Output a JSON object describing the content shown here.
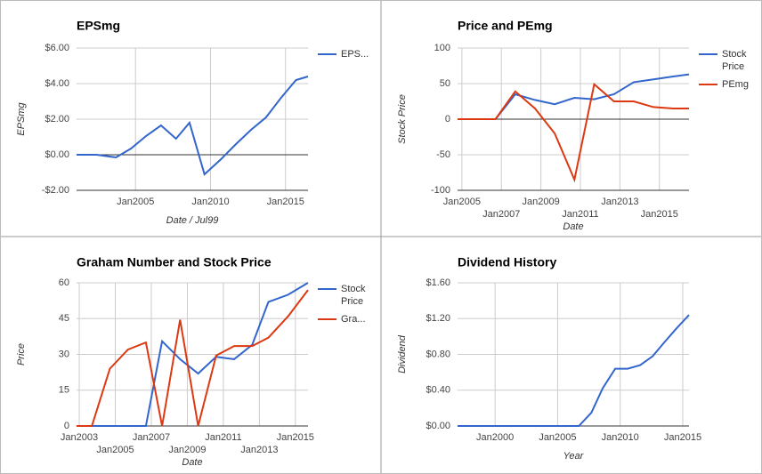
{
  "chart_data": [
    {
      "type": "line",
      "title": "EPSmg",
      "x_label": "Date / Jul99",
      "y_label": "EPSmg",
      "x": [
        2001.07,
        2002.4,
        2003.7,
        2004.7,
        2005.7,
        2006.7,
        2007.7,
        2008.6,
        2009.6,
        2010.7,
        2011.7,
        2012.7,
        2013.7,
        2014.7,
        2015.7,
        2016.5
      ],
      "series": [
        {
          "name": "EPS...",
          "color": "#3366cc",
          "values": [
            0,
            0,
            -0.15,
            0.35,
            1.05,
            1.65,
            0.9,
            1.8,
            -1.1,
            -0.25,
            0.6,
            1.4,
            2.1,
            3.2,
            4.2,
            4.4
          ]
        }
      ],
      "xlim": [
        2001.07,
        2016.5
      ],
      "ylim": [
        -2,
        6
      ],
      "xticks": [
        {
          "value": 2005,
          "label": "Jan2005"
        },
        {
          "value": 2010,
          "label": "Jan2010"
        },
        {
          "value": 2015,
          "label": "Jan2015"
        }
      ],
      "yticks": [
        {
          "value": -2,
          "label": "-$2.00"
        },
        {
          "value": 0,
          "label": "$0.00"
        },
        {
          "value": 2,
          "label": "$2.00"
        },
        {
          "value": 4,
          "label": "$4.00"
        },
        {
          "value": 6,
          "label": "$6.00"
        }
      ],
      "grid": true,
      "legend": "right"
    },
    {
      "type": "line",
      "title": "Price and PEmg",
      "x_label": "Date",
      "y_label": "Stock Price",
      "x": [
        2004.78,
        2005.7,
        2006.7,
        2007.7,
        2008.7,
        2009.7,
        2010.7,
        2011.7,
        2012.7,
        2013.7,
        2014.7,
        2015.7,
        2016.5
      ],
      "series": [
        {
          "name": "Stock Price",
          "color": "#3366cc",
          "values": [
            0,
            0,
            0,
            35,
            27,
            21,
            30,
            28,
            35,
            52,
            56,
            60,
            63
          ]
        },
        {
          "name": "PEmg",
          "color": "#dc3912",
          "values": [
            0,
            0,
            0,
            39,
            15,
            -20,
            -85,
            49,
            25,
            25,
            17,
            15,
            15
          ]
        }
      ],
      "xlim": [
        2004.78,
        2016.5
      ],
      "ylim": [
        -100,
        100
      ],
      "xticks": [
        {
          "value": 2005,
          "label": "Jan2005"
        },
        {
          "value": 2007,
          "label": "Jan2007"
        },
        {
          "value": 2009,
          "label": "Jan2009"
        },
        {
          "value": 2011,
          "label": "Jan2011"
        },
        {
          "value": 2013,
          "label": "Jan2013"
        },
        {
          "value": 2015,
          "label": "Jan2015"
        }
      ],
      "yticks": [
        -100,
        -50,
        0,
        50,
        100
      ],
      "grid": true,
      "legend": "right"
    },
    {
      "type": "line",
      "title": "Graham Number and Stock Price",
      "x_label": "Date",
      "y_label": "Price",
      "x": [
        2002.85,
        2003.7,
        2004.7,
        2005.7,
        2006.7,
        2007.6,
        2008.6,
        2009.6,
        2010.6,
        2011.6,
        2012.6,
        2013.5,
        2014.6,
        2015.7
      ],
      "series": [
        {
          "name": "Stock Price",
          "color": "#3366cc",
          "values": [
            0,
            0,
            0,
            0,
            0,
            35.5,
            28,
            22,
            29,
            28,
            34,
            52,
            55,
            60
          ]
        },
        {
          "name": "Gra...",
          "color": "#dc3912",
          "values": [
            0,
            0,
            24,
            32,
            35,
            0,
            44.5,
            0,
            29.5,
            33.5,
            33.5,
            37,
            46,
            57
          ]
        }
      ],
      "xlim": [
        2002.85,
        2015.7
      ],
      "ylim": [
        0,
        60
      ],
      "xticks": [
        {
          "value": 2003,
          "label": "Jan2003"
        },
        {
          "value": 2005,
          "label": "Jan2005"
        },
        {
          "value": 2007,
          "label": "Jan2007"
        },
        {
          "value": 2009,
          "label": "Jan2009"
        },
        {
          "value": 2011,
          "label": "Jan2011"
        },
        {
          "value": 2013,
          "label": "Jan2013"
        },
        {
          "value": 2015,
          "label": "Jan2015"
        }
      ],
      "yticks": [
        0,
        15,
        30,
        45,
        60
      ],
      "grid": true,
      "legend": "right"
    },
    {
      "type": "line",
      "title": "Dividend History",
      "x_label": "Year",
      "y_label": "Dividend",
      "x": [
        1997,
        2006.7,
        2007.7,
        2008.6,
        2009.6,
        2010.6,
        2011.6,
        2012.6,
        2013.5,
        2014.5,
        2015.5
      ],
      "series": [
        {
          "color": "#3366cc",
          "values": [
            0,
            0,
            0.15,
            0.42,
            0.64,
            0.64,
            0.68,
            0.78,
            0.93,
            1.09,
            1.24
          ]
        }
      ],
      "xlim": [
        1997,
        2015.5
      ],
      "ylim": [
        0,
        1.6
      ],
      "xticks": [
        {
          "value": 2000,
          "label": "Jan2000"
        },
        {
          "value": 2005,
          "label": "Jan2005"
        },
        {
          "value": 2010,
          "label": "Jan2010"
        },
        {
          "value": 2015,
          "label": "Jan2015"
        }
      ],
      "yticks": [
        {
          "value": 0,
          "label": "$0.00"
        },
        {
          "value": 0.4,
          "label": "$0.40"
        },
        {
          "value": 0.8,
          "label": "$0.80"
        },
        {
          "value": 1.2,
          "label": "$1.20"
        },
        {
          "value": 1.6,
          "label": "$1.60"
        }
      ],
      "grid": true
    }
  ]
}
